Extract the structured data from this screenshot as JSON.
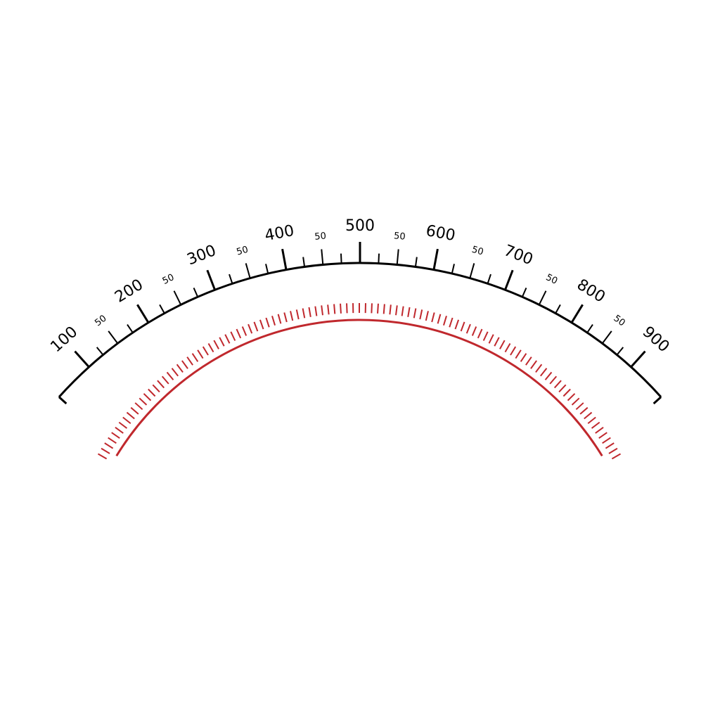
{
  "scale": {
    "min": 100,
    "max": 900,
    "major_labels": [
      "100",
      "200",
      "300",
      "400",
      "500",
      "600",
      "700",
      "800",
      "900"
    ],
    "minor_labels": [
      "50",
      "50",
      "50",
      "50",
      "50",
      "50",
      "50",
      "50"
    ],
    "ticks_per_major_interval": 4
  },
  "inner_scale": {
    "tick_count": 101
  },
  "colors": {
    "scale": "#000000",
    "inner_arc": "#c0282d"
  }
}
